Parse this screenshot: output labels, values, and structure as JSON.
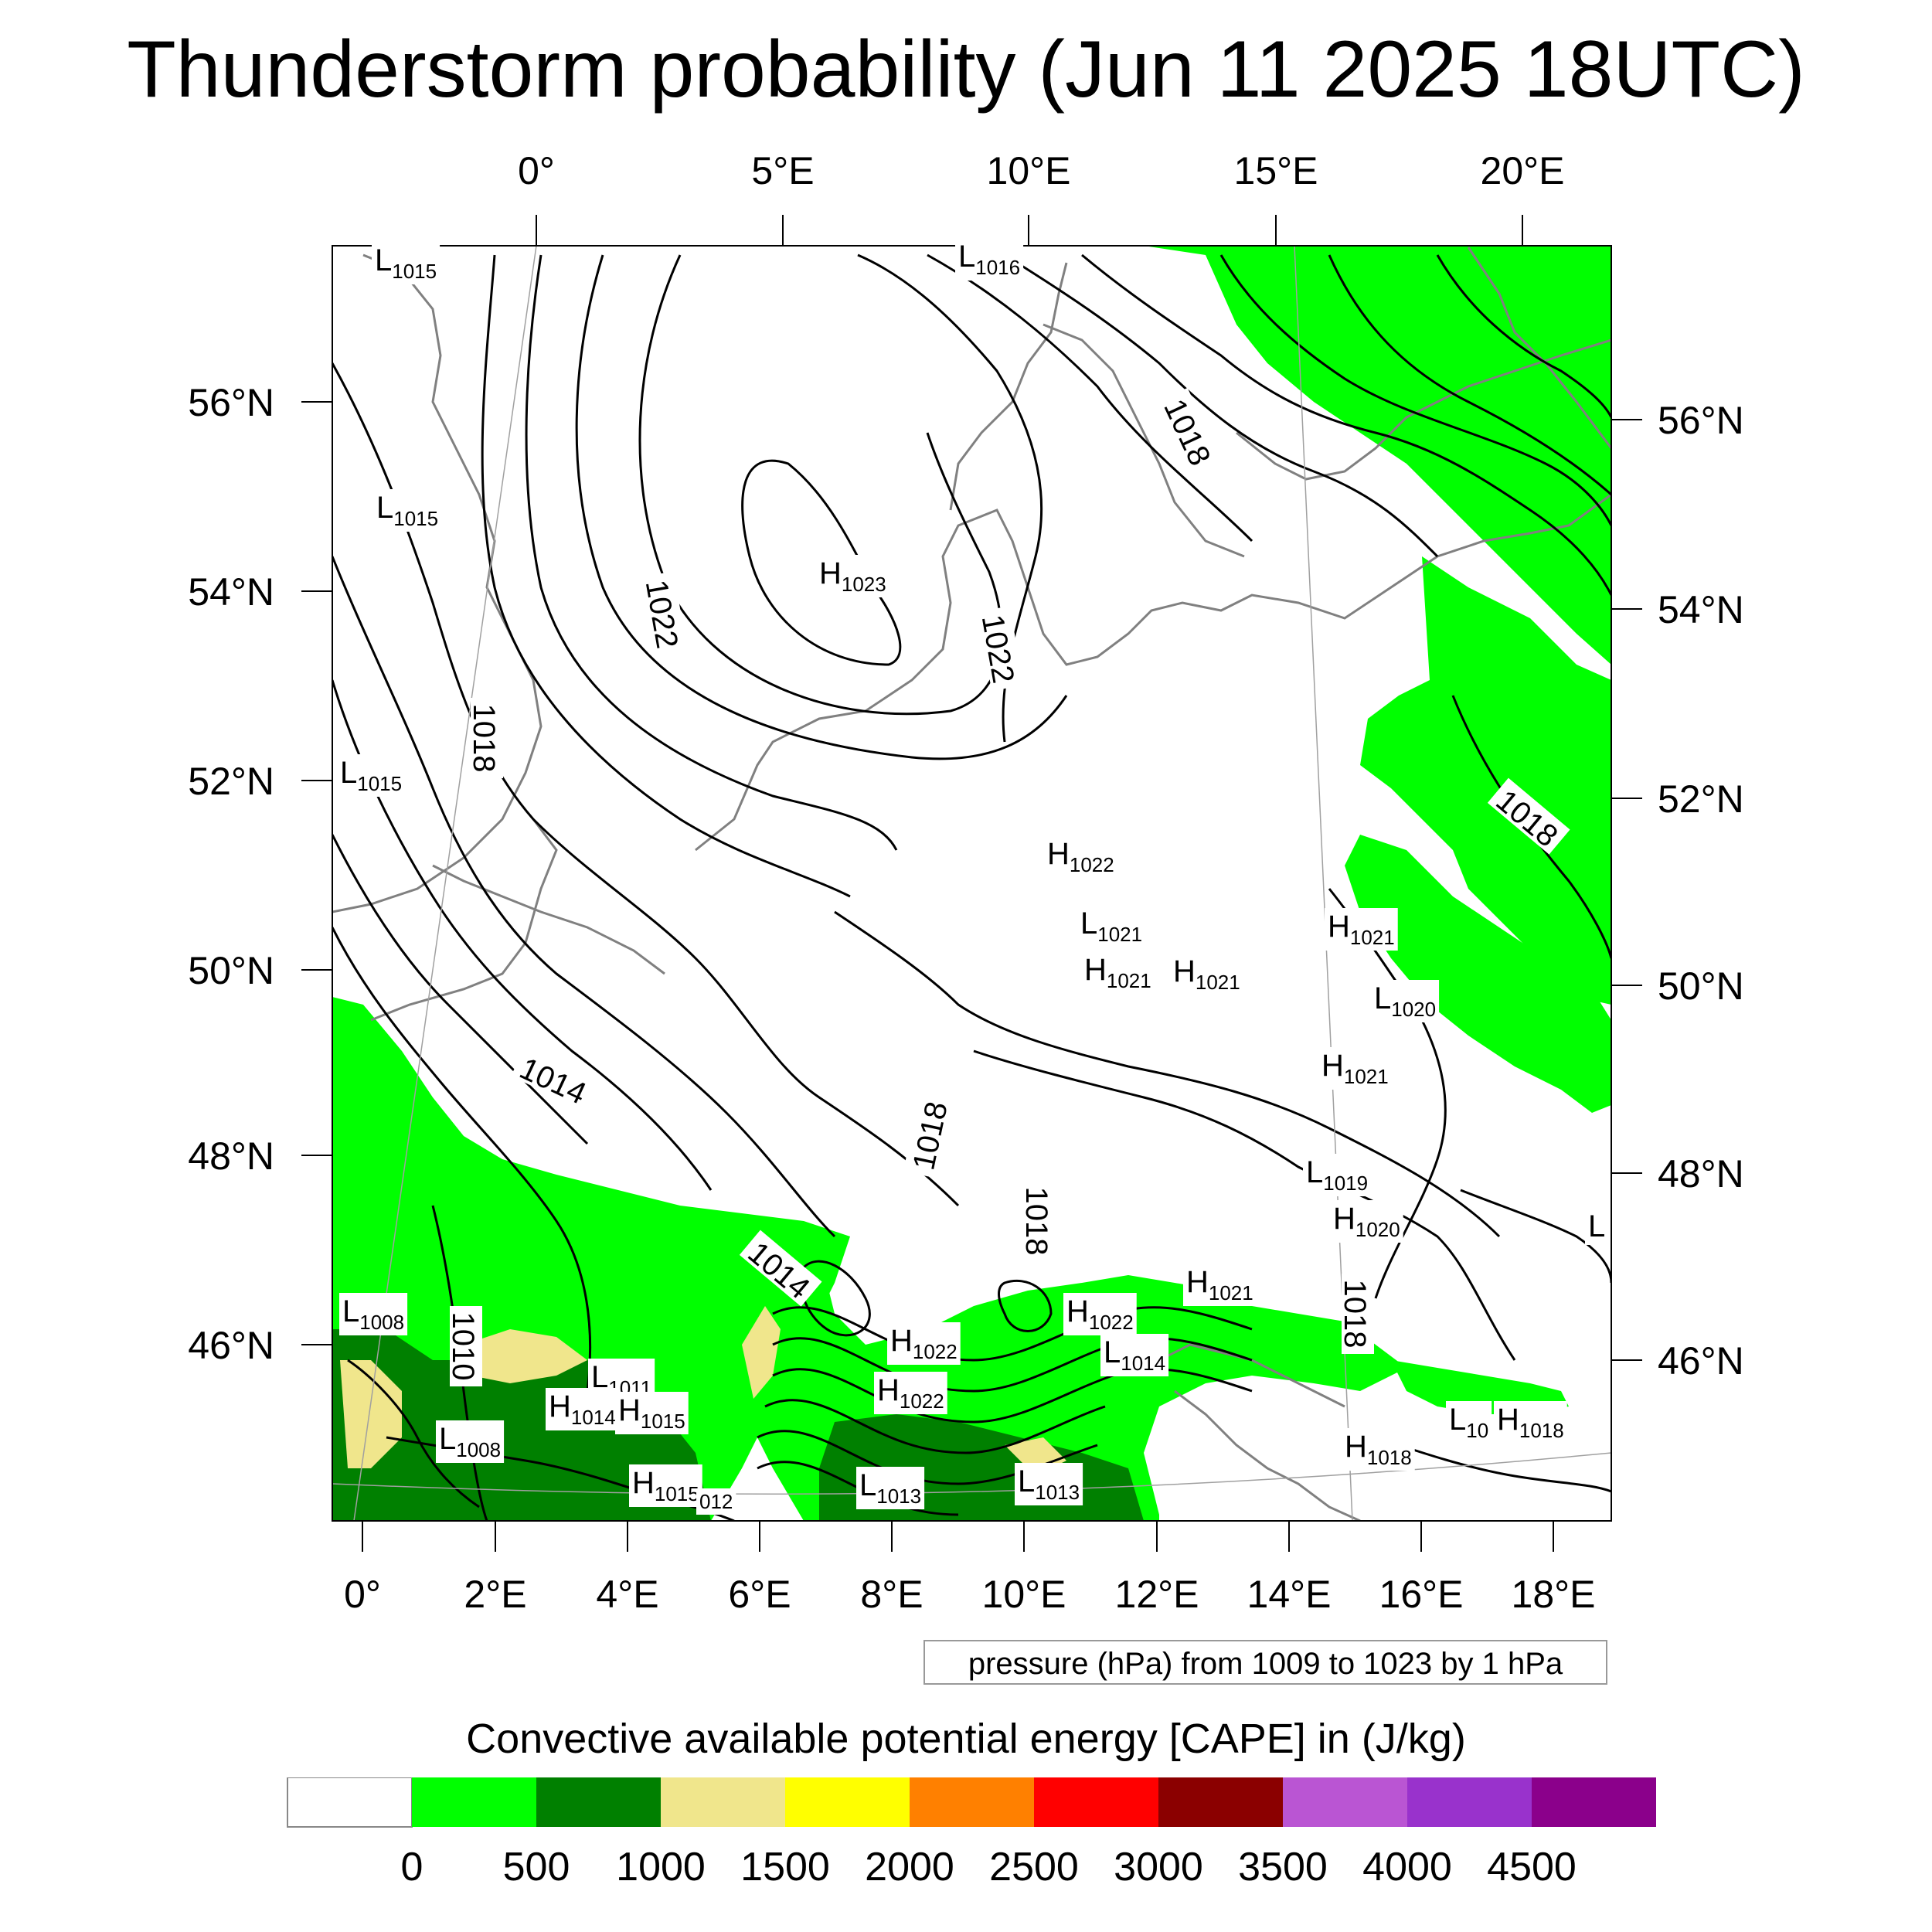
{
  "title": "Thunderstorm probability (Jun 11 2025 18UTC)",
  "map": {
    "top_lon_labels": [
      "0°",
      "5°E",
      "10°E",
      "15°E",
      "20°E"
    ],
    "bottom_lon_labels": [
      "0°",
      "2°E",
      "4°E",
      "6°E",
      "8°E",
      "10°E",
      "12°E",
      "14°E",
      "16°E",
      "18°E"
    ],
    "left_lat_labels": [
      "56°N",
      "54°N",
      "52°N",
      "50°N",
      "48°N",
      "46°N"
    ],
    "right_lat_labels": [
      "56°N",
      "54°N",
      "52°N",
      "50°N",
      "48°N",
      "46°N"
    ],
    "isobar_labels": [
      "1022",
      "1022",
      "1018",
      "1018",
      "1014",
      "1018",
      "1018",
      "1014",
      "1010",
      "1018",
      "1018"
    ],
    "pressure_centers": [
      {
        "letter": "L",
        "sub": "1015"
      },
      {
        "letter": "L",
        "sub": "1016"
      },
      {
        "letter": "L",
        "sub": "1015"
      },
      {
        "letter": "H",
        "sub": "1023"
      },
      {
        "letter": "L",
        "sub": "1015"
      },
      {
        "letter": "H",
        "sub": "1022"
      },
      {
        "letter": "L",
        "sub": "1021"
      },
      {
        "letter": "H",
        "sub": "1021"
      },
      {
        "letter": "H",
        "sub": "1021"
      },
      {
        "letter": "H",
        "sub": "1021"
      },
      {
        "letter": "L",
        "sub": "1020"
      },
      {
        "letter": "H",
        "sub": "1021"
      },
      {
        "letter": "L",
        "sub": "1019"
      },
      {
        "letter": "H",
        "sub": "1020"
      },
      {
        "letter": "L",
        "sub": ""
      },
      {
        "letter": "L",
        "sub": "1008"
      },
      {
        "letter": "L",
        "sub": "1011"
      },
      {
        "letter": "H",
        "sub": "1014"
      },
      {
        "letter": "H",
        "sub": "1015"
      },
      {
        "letter": "L",
        "sub": "1008"
      },
      {
        "letter": "H",
        "sub": "1015"
      },
      {
        "letter": "",
        "sub": "012"
      },
      {
        "letter": "L",
        "sub": "1013"
      },
      {
        "letter": "L",
        "sub": "1013"
      },
      {
        "letter": "H",
        "sub": "1022"
      },
      {
        "letter": "H",
        "sub": "1022"
      },
      {
        "letter": "H",
        "sub": "1022"
      },
      {
        "letter": "L",
        "sub": "1014"
      },
      {
        "letter": "H",
        "sub": "1021"
      },
      {
        "letter": "H",
        "sub": "1018"
      },
      {
        "letter": "L",
        "sub": "10"
      },
      {
        "letter": "H",
        "sub": "1018"
      }
    ]
  },
  "contour_note": "pressure (hPa) from 1009 to 1023 by 1 hPa",
  "colorbar": {
    "title": "Convective available potential energy [CAPE] in (J/kg)",
    "colors": [
      "#ffffff",
      "#00ff00",
      "#008000",
      "#f0e68c",
      "#ffff00",
      "#ff8000",
      "#ff0000",
      "#8b0000",
      "#ba55d3",
      "#9932cc",
      "#8b008b"
    ],
    "tick_labels": [
      "0",
      "500",
      "1000",
      "1500",
      "2000",
      "2500",
      "3000",
      "3500",
      "4000",
      "4500"
    ]
  },
  "colors": {
    "cape_green": "#00ff00",
    "cape_darkgreen": "#008000",
    "cape_khaki": "#f0e68c",
    "coastline": "#808080",
    "isobar": "#000000"
  }
}
